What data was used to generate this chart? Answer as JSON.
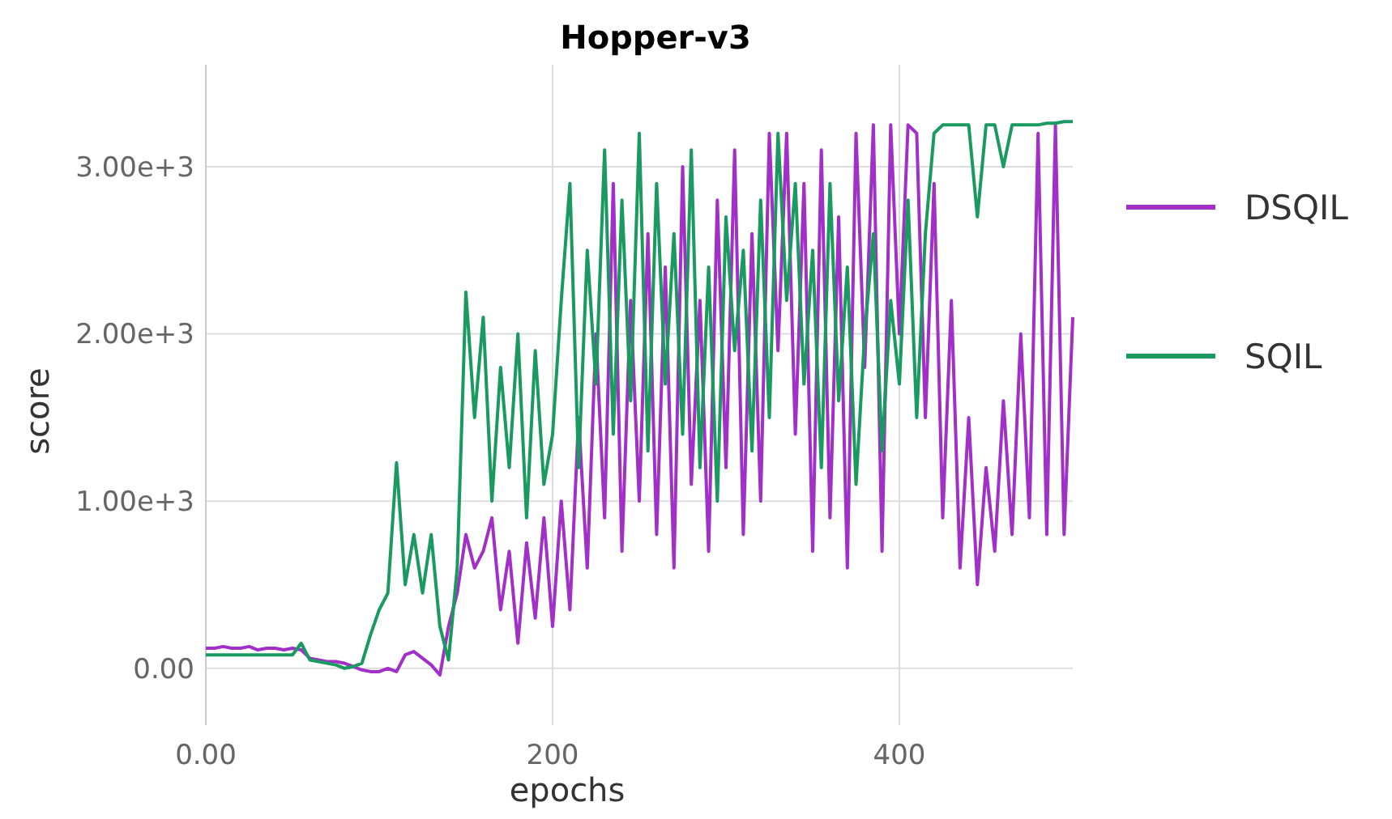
{
  "chart_data": {
    "type": "line",
    "title": "Hopper-v3",
    "xlabel": "epochs",
    "ylabel": "score",
    "x": [
      0,
      5,
      10,
      15,
      20,
      25,
      30,
      35,
      40,
      45,
      50,
      55,
      60,
      65,
      70,
      75,
      80,
      85,
      90,
      95,
      100,
      105,
      110,
      115,
      120,
      125,
      130,
      135,
      140,
      145,
      150,
      155,
      160,
      165,
      170,
      175,
      180,
      185,
      190,
      195,
      200,
      205,
      210,
      215,
      220,
      225,
      230,
      235,
      240,
      245,
      250,
      255,
      260,
      265,
      270,
      275,
      280,
      285,
      290,
      295,
      300,
      305,
      310,
      315,
      320,
      325,
      330,
      335,
      340,
      345,
      350,
      355,
      360,
      365,
      370,
      375,
      380,
      385,
      390,
      395,
      400,
      405,
      410,
      415,
      420,
      425,
      430,
      435,
      440,
      445,
      450,
      455,
      460,
      465,
      470,
      475,
      480,
      485,
      490,
      495,
      500
    ],
    "series": [
      {
        "name": "DSQIL",
        "color": "#a030c8",
        "values": [
          120,
          120,
          130,
          120,
          120,
          130,
          110,
          120,
          120,
          110,
          120,
          110,
          60,
          50,
          40,
          40,
          30,
          10,
          -10,
          -20,
          -20,
          0,
          -20,
          80,
          100,
          60,
          20,
          -40,
          250,
          450,
          800,
          600,
          700,
          900,
          350,
          700,
          150,
          750,
          300,
          900,
          250,
          1000,
          350,
          1500,
          600,
          2000,
          900,
          2900,
          700,
          2200,
          1000,
          2600,
          800,
          2400,
          600,
          3000,
          1100,
          2200,
          700,
          2800,
          1200,
          3100,
          800,
          2600,
          1000,
          3200,
          1900,
          3200,
          1400,
          2900,
          700,
          3100,
          900,
          2700,
          600,
          3200,
          1800,
          3250,
          700,
          3250,
          2000,
          3250,
          3200,
          1500,
          2900,
          900,
          2200,
          600,
          1500,
          500,
          1200,
          700,
          1600,
          800,
          2000,
          900,
          3200,
          800,
          3250,
          800,
          2100
        ]
      },
      {
        "name": "SQIL",
        "color": "#1a9a60",
        "values": [
          80,
          80,
          80,
          80,
          80,
          80,
          80,
          80,
          80,
          80,
          80,
          150,
          50,
          40,
          30,
          20,
          0,
          10,
          30,
          200,
          350,
          450,
          1230,
          500,
          800,
          450,
          800,
          250,
          50,
          600,
          2250,
          1500,
          2100,
          1000,
          1800,
          1200,
          2000,
          900,
          1900,
          1100,
          1400,
          2200,
          2900,
          1200,
          2500,
          1700,
          3100,
          1400,
          2800,
          1600,
          3200,
          1300,
          2900,
          1700,
          2600,
          1400,
          3100,
          1200,
          2400,
          1000,
          2700,
          1900,
          2500,
          1300,
          2800,
          1500,
          3200,
          2200,
          2900,
          1700,
          2500,
          1200,
          2900,
          1600,
          2400,
          1100,
          2000,
          2600,
          1300,
          2200,
          1700,
          2800,
          1500,
          2600,
          3200,
          3250,
          3250,
          3250,
          3250,
          2700,
          3250,
          3250,
          3000,
          3250,
          3250,
          3250,
          3250,
          3260,
          3260,
          3270,
          3270
        ]
      }
    ],
    "xlim": [
      0,
      500
    ],
    "xticks": [
      {
        "value": 0,
        "label": "0.00"
      },
      200,
      400
    ],
    "ylim": [
      -340,
      3610
    ],
    "yticks": [
      {
        "value": 0,
        "label": "0.00"
      },
      {
        "value": 1000,
        "label": "1.00e+3"
      },
      {
        "value": 2000,
        "label": "2.00e+3"
      },
      {
        "value": 3000,
        "label": "3.00e+3"
      }
    ],
    "grid": true,
    "legend": "right",
    "marker": "none",
    "line_style": "solid"
  }
}
